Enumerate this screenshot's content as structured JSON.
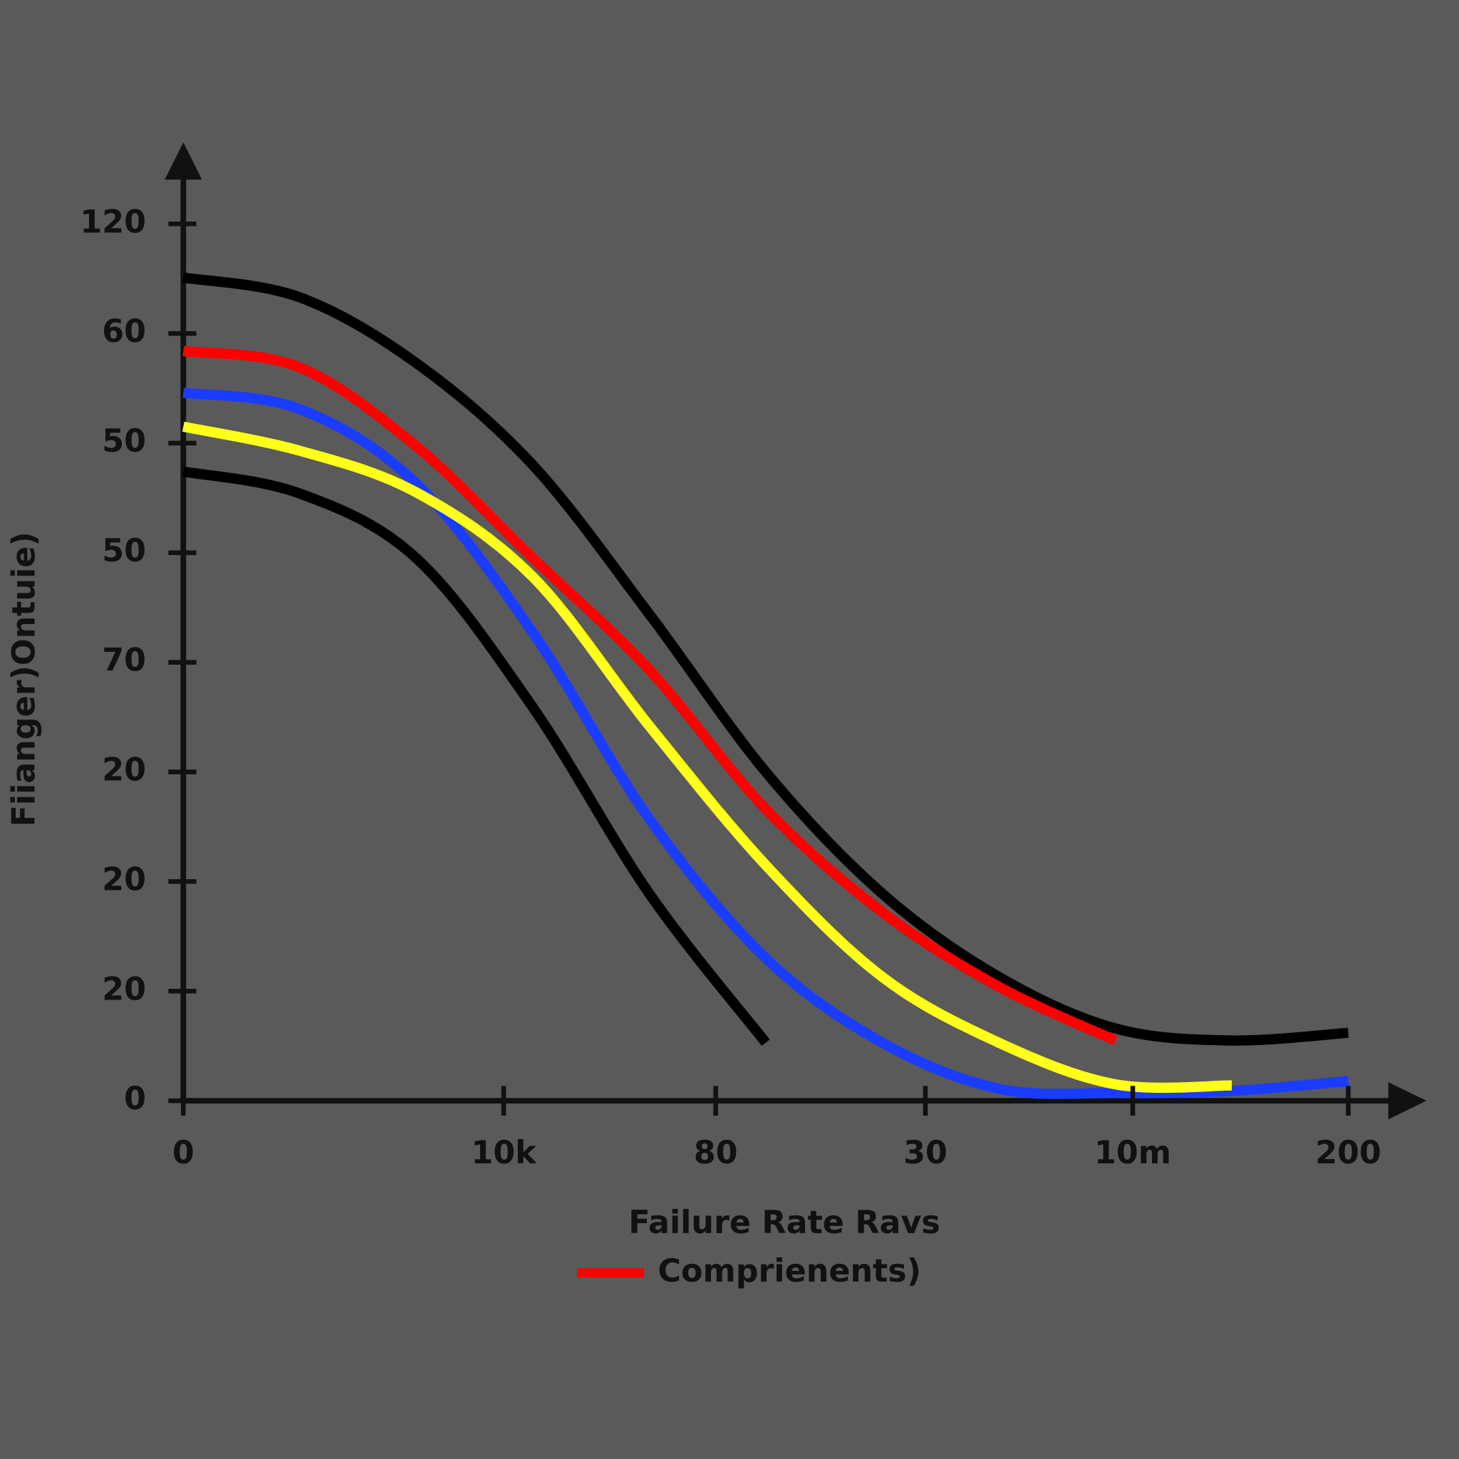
{
  "chart_data": {
    "type": "line",
    "y_label": "Fiianger)Ontuie)",
    "x_label": "Failure Rate Ravs",
    "x": [
      0,
      10,
      20,
      30,
      40,
      50,
      60,
      70,
      80,
      90,
      100
    ],
    "xlim": [
      0,
      106
    ],
    "xticks": [
      0,
      {
        "value": 27.5,
        "label": "10k"
      },
      {
        "value": 45.7,
        "label": "80"
      },
      {
        "value": 63.7,
        "label": "30"
      },
      {
        "value": 81.5,
        "label": "10m"
      },
      {
        "value": 100,
        "label": "200"
      }
    ],
    "ylim": [
      0,
      8.7
    ],
    "yticks": [
      0,
      {
        "value": 1,
        "label": "20"
      },
      {
        "value": 2,
        "label": "20"
      },
      {
        "value": 3,
        "label": "20"
      },
      {
        "value": 4,
        "label": "70"
      },
      {
        "value": 5,
        "label": "50"
      },
      {
        "value": 6,
        "label": "50"
      },
      {
        "value": 7,
        "label": "60"
      },
      {
        "value": 8,
        "label": "120"
      }
    ],
    "grid": false,
    "series": [
      {
        "color": "#000000",
        "values": [
          7.51,
          7.33,
          6.73,
          5.8,
          4.44,
          3.0,
          1.89,
          1.13,
          0.66,
          0.55,
          0.62
        ]
      },
      {
        "name": "Comprienents)",
        "color": "#ff0000",
        "values": [
          6.84,
          6.69,
          5.97,
          4.95,
          3.93,
          2.66,
          1.72,
          1.04,
          0.55,
          null,
          null
        ]
      },
      {
        "color": "#1a3cff",
        "values": [
          6.46,
          6.31,
          5.63,
          4.27,
          2.57,
          1.3,
          0.53,
          0.11,
          0.07,
          0.09,
          0.18
        ]
      },
      {
        "color": "#ffff1a",
        "values": [
          6.15,
          5.93,
          5.55,
          4.78,
          3.42,
          2.15,
          1.13,
          0.53,
          0.15,
          0.14,
          null
        ]
      },
      {
        "color": "#000000",
        "values": [
          5.74,
          5.54,
          4.95,
          3.59,
          1.89,
          0.53,
          null,
          null,
          null,
          null,
          null
        ]
      }
    ]
  }
}
